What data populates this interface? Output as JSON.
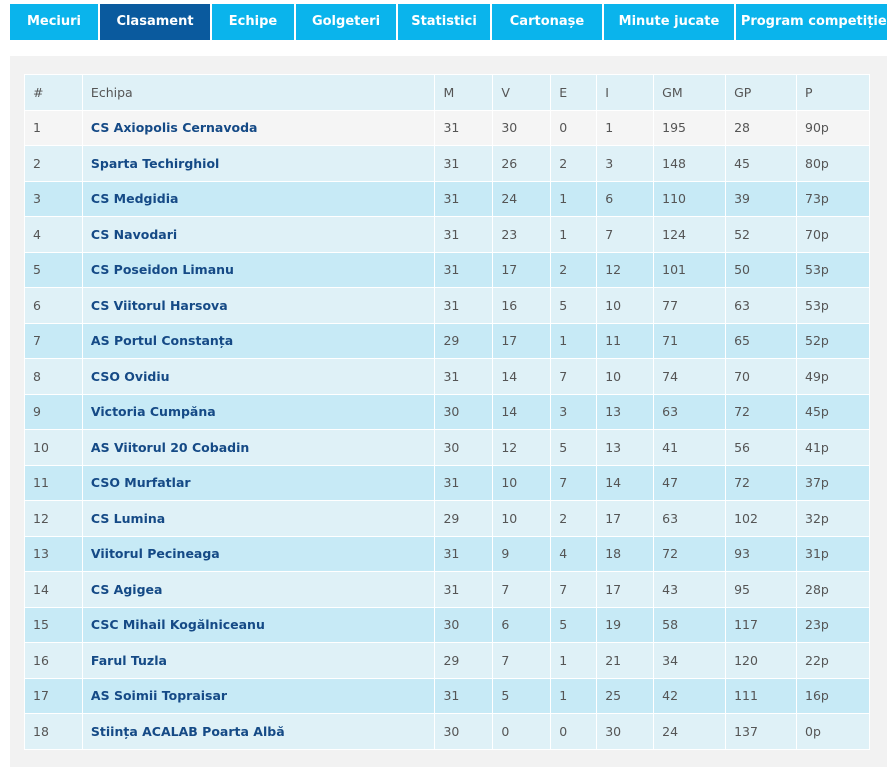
{
  "tabs": [
    "Meciuri",
    "Clasament",
    "Echipe",
    "Golgeteri",
    "Statistici",
    "Cartonașe",
    "Minute jucate",
    "Program competiției"
  ],
  "active_tab": 1,
  "table": {
    "header": [
      "#",
      "Echipa",
      "M",
      "V",
      "E",
      "I",
      "GM",
      "GP",
      "P"
    ],
    "rows": [
      [
        "1",
        "CS Axiopolis Cernavoda",
        "31",
        "30",
        "0",
        "1",
        "195",
        "28",
        "90p"
      ],
      [
        "2",
        "Sparta Techirghiol",
        "31",
        "26",
        "2",
        "3",
        "148",
        "45",
        "80p"
      ],
      [
        "3",
        "CS Medgidia",
        "31",
        "24",
        "1",
        "6",
        "110",
        "39",
        "73p"
      ],
      [
        "4",
        "CS Navodari",
        "31",
        "23",
        "1",
        "7",
        "124",
        "52",
        "70p"
      ],
      [
        "5",
        "CS Poseidon Limanu",
        "31",
        "17",
        "2",
        "12",
        "101",
        "50",
        "53p"
      ],
      [
        "6",
        "CS Viitorul Harsova",
        "31",
        "16",
        "5",
        "10",
        "77",
        "63",
        "53p"
      ],
      [
        "7",
        "AS Portul Constanța",
        "29",
        "17",
        "1",
        "11",
        "71",
        "65",
        "52p"
      ],
      [
        "8",
        "CSO Ovidiu",
        "31",
        "14",
        "7",
        "10",
        "74",
        "70",
        "49p"
      ],
      [
        "9",
        "Victoria Cumpăna",
        "30",
        "14",
        "3",
        "13",
        "63",
        "72",
        "45p"
      ],
      [
        "10",
        "AS Viitorul 20 Cobadin",
        "30",
        "12",
        "5",
        "13",
        "41",
        "56",
        "41p"
      ],
      [
        "11",
        "CSO Murfatlar",
        "31",
        "10",
        "7",
        "14",
        "47",
        "72",
        "37p"
      ],
      [
        "12",
        "CS Lumina",
        "29",
        "10",
        "2",
        "17",
        "63",
        "102",
        "32p"
      ],
      [
        "13",
        "Viitorul Pecineaga",
        "31",
        "9",
        "4",
        "18",
        "72",
        "93",
        "31p"
      ],
      [
        "14",
        "CS Agigea",
        "31",
        "7",
        "7",
        "17",
        "43",
        "95",
        "28p"
      ],
      [
        "15",
        "CSC Mihail Kogălniceanu",
        "30",
        "6",
        "5",
        "19",
        "58",
        "117",
        "23p"
      ],
      [
        "16",
        "Farul Tuzla",
        "29",
        "7",
        "1",
        "21",
        "34",
        "120",
        "22p"
      ],
      [
        "17",
        "AS Soimii Topraisar",
        "31",
        "5",
        "1",
        "25",
        "42",
        "111",
        "16p"
      ],
      [
        "18",
        "Stiința ACALAB Poarta Albă",
        "30",
        "0",
        "0",
        "30",
        "24",
        "137",
        "0p"
      ]
    ]
  }
}
